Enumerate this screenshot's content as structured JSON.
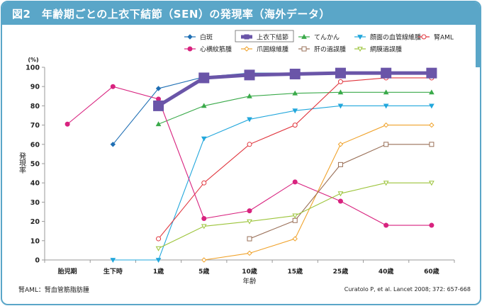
{
  "header": {
    "title": "図2　年齢期ごとの上衣下結節（SEN）の発現率（海外データ）"
  },
  "footnote": "腎AML：腎血管筋脂肪腫",
  "source": "Curatolo P, et al. Lancet 2008; 372: 657-668",
  "chart_data": {
    "type": "line",
    "title": "年齢期ごとの上衣下結節（SEN）の発現率（海外データ）",
    "xlabel": "年齢",
    "ylabel": "発現率",
    "yunit": "(%)",
    "ylim": [
      0,
      100
    ],
    "yticks": [
      0,
      10,
      20,
      30,
      40,
      50,
      60,
      70,
      80,
      90,
      100
    ],
    "grid": false,
    "legend_position": "top",
    "categories": [
      "胎児期",
      "生下時",
      "1歳",
      "5歳",
      "10歳",
      "15歳",
      "25歳",
      "40歳",
      "60歳"
    ],
    "series": [
      {
        "name": "白斑",
        "color": "#1f6fb4",
        "marker": "diamond-filled",
        "values": [
          null,
          60,
          89,
          95,
          97,
          97,
          97,
          97,
          97
        ]
      },
      {
        "name": "上衣下結節",
        "color": "#6a55a8",
        "marker": "square-filled",
        "highlight": true,
        "values": [
          null,
          null,
          80,
          94.5,
          96,
          96.5,
          97,
          97,
          97
        ]
      },
      {
        "name": "てんかん",
        "color": "#3aaa4a",
        "marker": "triangle-filled",
        "values": [
          null,
          null,
          70.5,
          80,
          85,
          86.5,
          87,
          87,
          87
        ]
      },
      {
        "name": "顔面の血管線維腫",
        "color": "#22a7dc",
        "marker": "triangle-down-filled",
        "values": [
          null,
          0,
          0,
          63,
          73,
          77.5,
          80,
          80,
          80
        ]
      },
      {
        "name": "腎AML",
        "color": "#e0343c",
        "marker": "circle-open",
        "values": [
          null,
          null,
          11,
          40,
          60,
          70,
          92.5,
          94.5,
          94.5
        ]
      },
      {
        "name": "心横紋筋腫",
        "color": "#d8237f",
        "marker": "circle-filled",
        "values": [
          70.5,
          90,
          83.5,
          21.5,
          25.5,
          40.5,
          30.5,
          18,
          18
        ]
      },
      {
        "name": "爪囲線維腫",
        "color": "#f0a22a",
        "marker": "diamond-open",
        "values": [
          null,
          null,
          null,
          0,
          3.5,
          11,
          60,
          70,
          70
        ]
      },
      {
        "name": "肝の過誤腫",
        "color": "#9a7058",
        "marker": "square-open",
        "values": [
          null,
          null,
          null,
          null,
          11,
          20.5,
          49.5,
          60,
          60
        ]
      },
      {
        "name": "網膜過誤腫",
        "color": "#9cc43a",
        "marker": "triangle-down-open",
        "values": [
          null,
          null,
          6,
          17.5,
          20,
          23,
          34.5,
          40,
          40
        ]
      }
    ]
  }
}
